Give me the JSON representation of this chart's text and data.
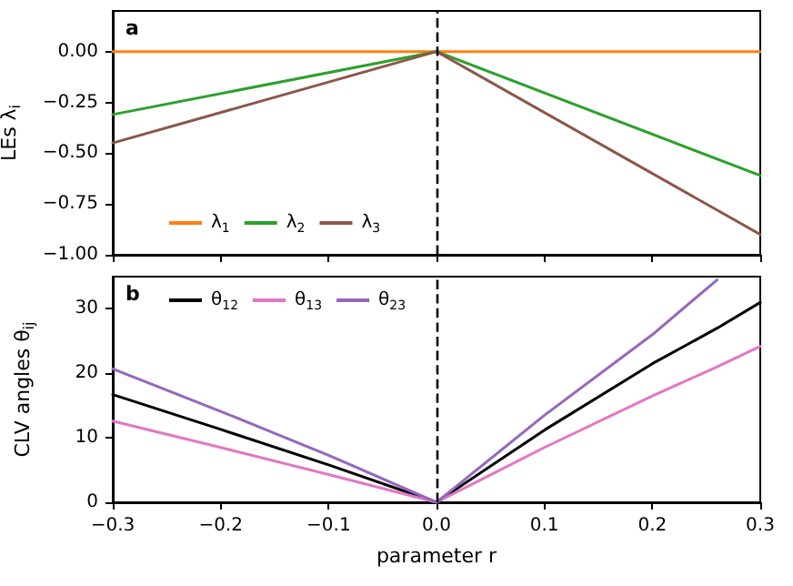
{
  "chart_data": [
    {
      "type": "line",
      "annotations": [
        "a"
      ],
      "ylabel": "LEs λ$_{i}$",
      "xlim": [
        -0.3,
        0.3
      ],
      "ylim": [
        -1,
        0.2
      ],
      "xticks": [
        -0.3,
        -0.2,
        -0.1,
        0,
        0.1,
        0.2,
        0.3
      ],
      "yticks": [
        {
          "value": -1,
          "label": "−1.00"
        },
        {
          "value": -0.75,
          "label": "−0.75"
        },
        {
          "value": -0.5,
          "label": "−0.50"
        },
        {
          "value": -0.25,
          "label": "−0.25"
        },
        {
          "value": 0,
          "label": "0.00"
        }
      ],
      "tick_labels": "y",
      "grid": false,
      "legend": "lower left",
      "marker": "none",
      "line_style": "solid",
      "x": [
        -0.3,
        0,
        0.3
      ],
      "series": [
        {
          "name": "λ$_{1}$",
          "color": "#ff7f0e",
          "values": [
            0,
            0,
            0
          ]
        },
        {
          "name": "λ$_{2}$",
          "color": "#2ca02c",
          "values": [
            -0.31,
            0,
            -0.61
          ]
        },
        {
          "name": "λ$_{3}$",
          "color": "#8c564b",
          "values": [
            -0.45,
            0,
            -0.9
          ]
        }
      ],
      "ref_lines": [
        {
          "axis": "x",
          "value": 0,
          "color": "#000000",
          "line_style": "dashed"
        }
      ]
    },
    {
      "type": "line",
      "annotations": [
        "b"
      ],
      "xlabel": "parameter r",
      "ylabel": "CLV angles θ$_{ij}$",
      "xlim": [
        -0.3,
        0.3
      ],
      "ylim": [
        0,
        35
      ],
      "xticks": [
        {
          "value": -0.3,
          "label": "−0.3"
        },
        {
          "value": -0.2,
          "label": "−0.2"
        },
        {
          "value": -0.1,
          "label": "−0.1"
        },
        {
          "value": 0,
          "label": "0.0"
        },
        {
          "value": 0.1,
          "label": "0.1"
        },
        {
          "value": 0.2,
          "label": "0.2"
        },
        {
          "value": 0.3,
          "label": "0.3"
        }
      ],
      "yticks": [
        0,
        10,
        20,
        30
      ],
      "grid": false,
      "legend": "upper left",
      "marker": "none",
      "line_style": "solid",
      "x": [
        -0.3,
        -0.2,
        -0.1,
        0,
        0.1,
        0.2,
        0.26,
        0.3
      ],
      "series": [
        {
          "name": "θ$_{12}$",
          "color": "#000000",
          "values": [
            16.7,
            11.3,
            5.8,
            0,
            11.2,
            21.5,
            27,
            31
          ]
        },
        {
          "name": "θ$_{13}$",
          "color": "#e377c2",
          "values": [
            12.6,
            8.5,
            4.3,
            0,
            8.5,
            16.5,
            21,
            24.2
          ]
        },
        {
          "name": "θ$_{23}$",
          "color": "#9467bd",
          "values": [
            20.7,
            14.1,
            7.3,
            0,
            13.5,
            26,
            34.5,
            null
          ]
        }
      ],
      "ref_lines": [
        {
          "axis": "x",
          "value": 0,
          "color": "#000000",
          "line_style": "dashed"
        }
      ]
    }
  ]
}
